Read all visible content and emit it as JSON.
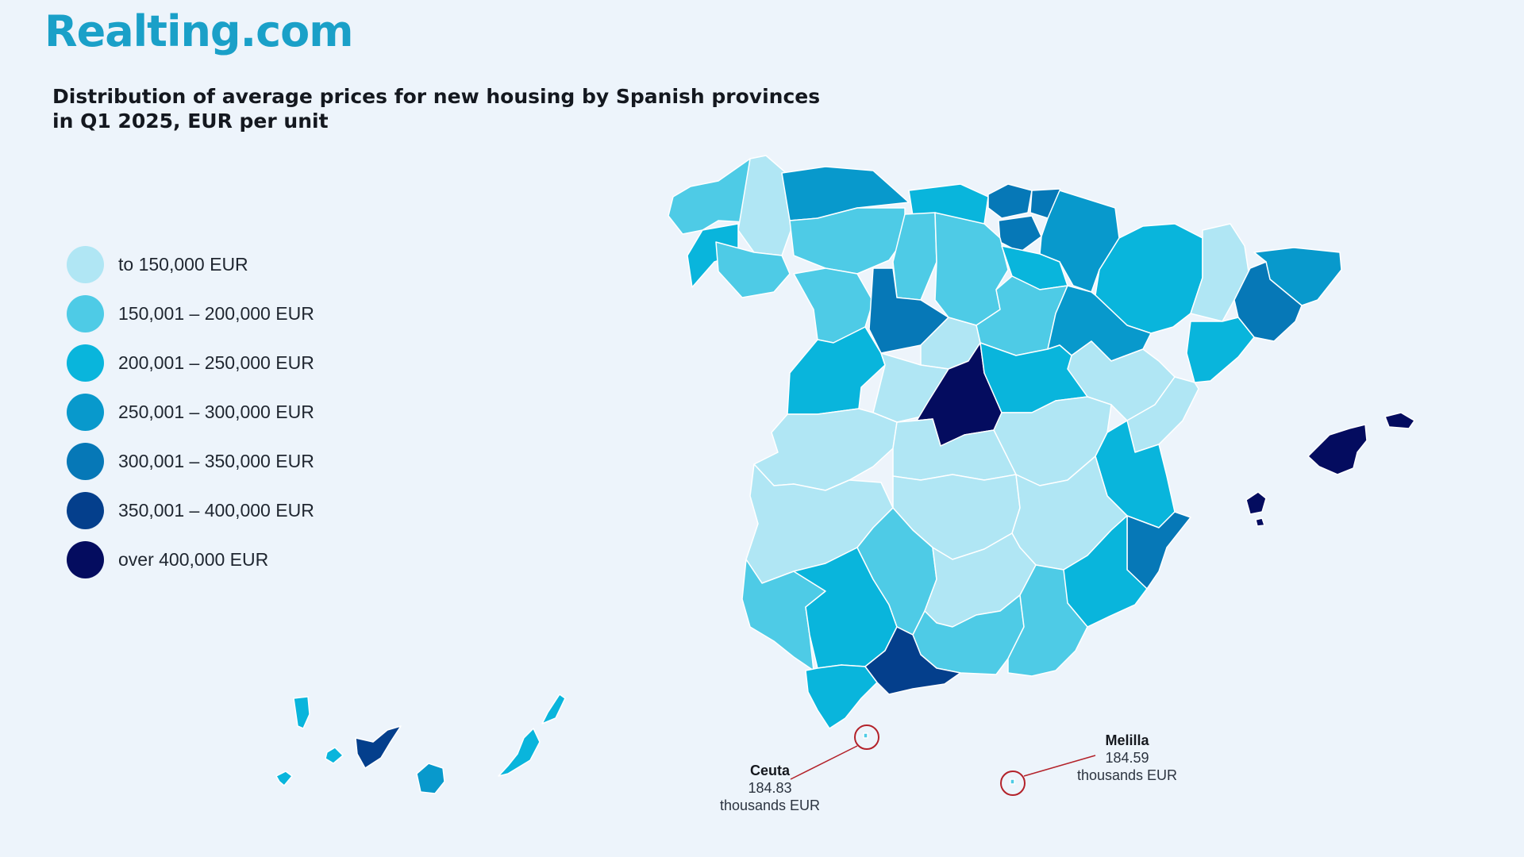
{
  "brand": {
    "logo_text": "Realting.com"
  },
  "title": "Distribution of average prices for new housing by Spanish provinces in Q1 2025, EUR per unit",
  "legend": [
    {
      "label": "to 150,000 EUR",
      "color": "#b0e6f4"
    },
    {
      "label": "150,001 – 200,000 EUR",
      "color": "#4ecbe6"
    },
    {
      "label": "200,001 – 250,000 EUR",
      "color": "#09b5dc"
    },
    {
      "label": "250,001 – 300,000 EUR",
      "color": "#0899cc"
    },
    {
      "label": "300,001 – 350,000 EUR",
      "color": "#0678b7"
    },
    {
      "label": "350,001 – 400,000 EUR",
      "color": "#043f8c"
    },
    {
      "label": "over 400,000 EUR",
      "color": "#040c5f"
    }
  ],
  "callouts": {
    "ceuta": {
      "name": "Ceuta",
      "value": "184.83",
      "unit": "thousands EUR"
    },
    "melilla": {
      "name": "Melilla",
      "value": "184.59",
      "unit": "thousands EUR"
    }
  },
  "colors": {
    "background": "#edf4fb",
    "border": "#ffffff",
    "callout_ring": "#b3222a"
  }
}
